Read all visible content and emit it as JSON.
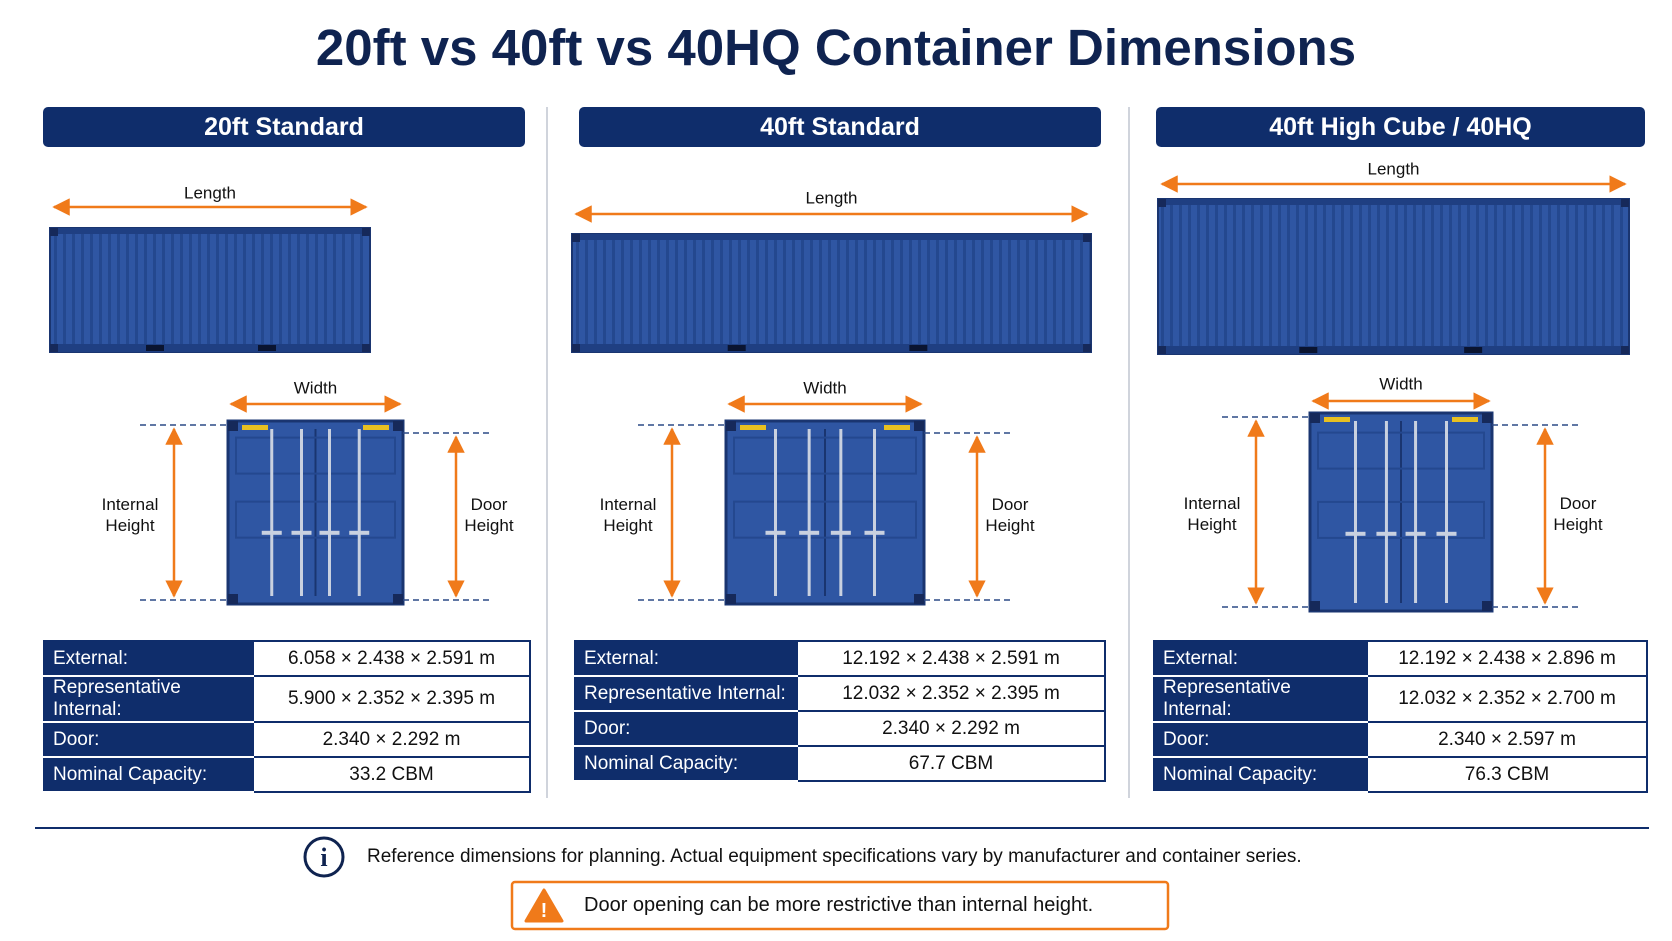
{
  "title": "20ft vs 40ft vs 40HQ Container Dimensions",
  "columns": [
    {
      "header": "20ft Standard",
      "length_label": "Length",
      "width_label": "Width",
      "internal_height_label": "Internal Height",
      "door_height_label": "Door Height",
      "specs": [
        {
          "label": "External:",
          "value": "6.058 × 2.438 × 2.591 m"
        },
        {
          "label": "Representative Internal:",
          "value": "5.900 × 2.352 × 2.395 m"
        },
        {
          "label": "Door:",
          "value": "2.340 × 2.292 m"
        },
        {
          "label": "Nominal Capacity:",
          "value": "33.2 CBM"
        }
      ]
    },
    {
      "header": "40ft Standard",
      "length_label": "Length",
      "width_label": "Width",
      "internal_height_label": "Internal Height",
      "door_height_label": "Door Height",
      "specs": [
        {
          "label": "External:",
          "value": "12.192 × 2.438 × 2.591 m"
        },
        {
          "label": "Representative Internal:",
          "value": "12.032 × 2.352 × 2.395 m"
        },
        {
          "label": "Door:",
          "value": "2.340 × 2.292 m"
        },
        {
          "label": "Nominal Capacity:",
          "value": "67.7 CBM"
        }
      ]
    },
    {
      "header": "40ft High Cube / 40HQ",
      "length_label": "Length",
      "width_label": "Width",
      "internal_height_label": "Internal Height",
      "door_height_label": "Door Height",
      "specs": [
        {
          "label": "External:",
          "value": "12.192 × 2.438 × 2.896 m"
        },
        {
          "label": "Representative Internal:",
          "value": "12.032 × 2.352 × 2.700 m"
        },
        {
          "label": "Door:",
          "value": "2.340 × 2.597 m"
        },
        {
          "label": "Nominal Capacity:",
          "value": "76.3 CBM"
        }
      ]
    }
  ],
  "note": "Reference dimensions for planning. Actual equipment specifications vary by manufacturer and container series.",
  "warning": "Door opening can be more restrictive than internal height."
}
